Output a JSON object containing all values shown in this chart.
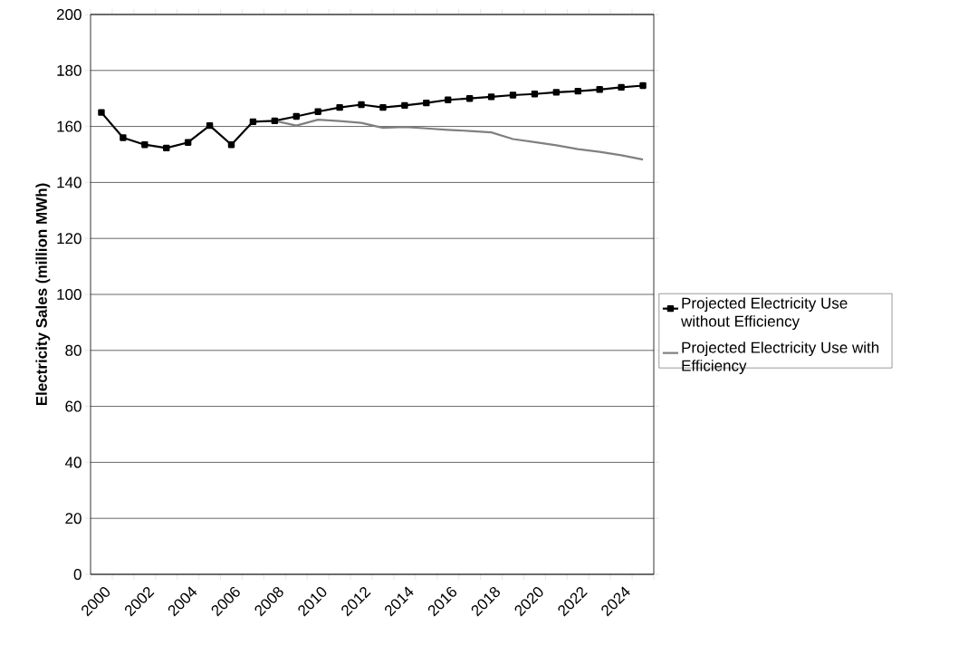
{
  "chart_data": {
    "type": "line",
    "ylabel": "Electricity Sales (million MWh)",
    "categories": [
      "2000",
      null,
      "2002",
      null,
      "2004",
      null,
      "2006",
      null,
      "2008",
      null,
      "2010",
      null,
      "2012",
      null,
      "2014",
      null,
      "2016",
      null,
      "2018",
      null,
      "2020",
      null,
      "2022",
      null,
      "2024",
      null
    ],
    "series": [
      {
        "name": "Projected Electricity Use without Efficiency",
        "color": "#000000",
        "marker": "square",
        "values": [
          165,
          156,
          153.5,
          152.3,
          154.3,
          160.3,
          153.5,
          161.7,
          162,
          163.6,
          165.3,
          166.8,
          167.8,
          166.8,
          167.5,
          168.4,
          169.5,
          170,
          170.6,
          171.2,
          171.6,
          172.2,
          172.6,
          173.2,
          174,
          174.6
        ]
      },
      {
        "name": "Projected Electricity Use with Efficiency",
        "color": "#808080",
        "marker": "none",
        "values": [
          null,
          null,
          null,
          null,
          null,
          null,
          null,
          null,
          162,
          160.3,
          162.4,
          161.9,
          161.3,
          159.5,
          159.8,
          159.3,
          158.8,
          158.4,
          157.9,
          155.5,
          154.4,
          153.3,
          151.9,
          150.9,
          149.7,
          148.2
        ]
      }
    ],
    "ylim": [
      0,
      200
    ],
    "yticks": [
      0,
      20,
      40,
      60,
      80,
      100,
      120,
      140,
      160,
      180,
      200
    ],
    "grid": "y",
    "legend": "right",
    "line_style": "solid"
  }
}
